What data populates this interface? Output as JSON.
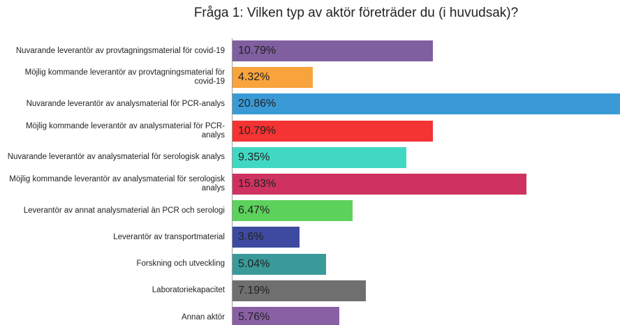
{
  "chart_data": {
    "type": "barh",
    "title": "Fråga 1: Vilken typ av aktör företräder du (i huvudsak)?",
    "categories": [
      "Nuvarande leverantör av provtagningsmaterial för covid-19",
      "Möjlig kommande leverantör av provtagningsmaterial för covid-19",
      "Nuvarande leverantör av analysmaterial för PCR-analys",
      "Möjlig kommande leverantör av analysmaterial för PCR-analys",
      "Nuvarande leverantör av analysmaterial för serologisk analys",
      "Möjlig kommande leverantör av analysmaterial för serologisk analys",
      "Leverantör av annat analysmaterial än PCR och serologi",
      "Leverantör av transportmaterial",
      "Forskning och utveckling",
      "Laboratoriekapacitet",
      "Annan aktör"
    ],
    "values": [
      10.79,
      4.32,
      20.86,
      10.79,
      9.35,
      15.83,
      6.47,
      3.6,
      5.04,
      7.19,
      5.76
    ],
    "value_labels": [
      "10.79%",
      "4.32%",
      "20.86%",
      "10.79%",
      "9.35%",
      "15.83%",
      "6.47%",
      "3.6%",
      "5.04%",
      "7.19%",
      "5.76%"
    ],
    "colors": [
      "#7f5f9f",
      "#f9a33c",
      "#3a9ad6",
      "#f43333",
      "#41d8c3",
      "#cf3260",
      "#5cd25c",
      "#3d4a9f",
      "#3a9a9a",
      "#6f6f6f",
      "#8a60a5"
    ],
    "xlim": [
      0,
      20.86
    ]
  }
}
